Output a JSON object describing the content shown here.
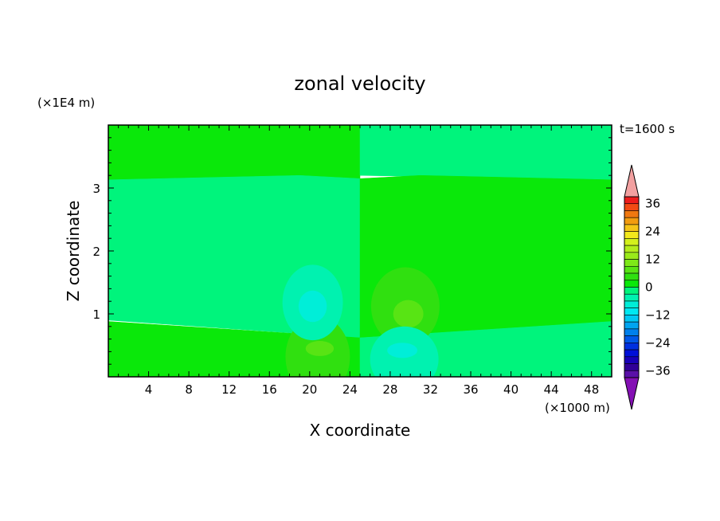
{
  "chart_data": {
    "type": "heatmap",
    "title": "zonal velocity",
    "xlabel": "X coordinate",
    "ylabel": "Z coordinate",
    "x_unit": "(×1000 m)",
    "y_unit": "(×1E4 m)",
    "time_label": "t=1600 s",
    "xlim": [
      0,
      50
    ],
    "ylim": [
      0,
      4
    ],
    "x_ticks": [
      4,
      8,
      12,
      16,
      20,
      24,
      28,
      32,
      36,
      40,
      44,
      48
    ],
    "y_ticks": [
      1,
      2,
      3
    ],
    "colorbar": {
      "labels": [
        36,
        24,
        12,
        0,
        -12,
        -24,
        -36
      ],
      "levels": [
        {
          "from": 39,
          "to": 42,
          "color": "#f2a0a0"
        },
        {
          "from": 36,
          "to": 39,
          "color": "#ee1c1c"
        },
        {
          "from": 33,
          "to": 36,
          "color": "#f24a14"
        },
        {
          "from": 30,
          "to": 33,
          "color": "#f07810"
        },
        {
          "from": 27,
          "to": 30,
          "color": "#f29c10"
        },
        {
          "from": 24,
          "to": 27,
          "color": "#f5c418"
        },
        {
          "from": 21,
          "to": 24,
          "color": "#f2e81c"
        },
        {
          "from": 18,
          "to": 21,
          "color": "#d4f01c"
        },
        {
          "from": 15,
          "to": 18,
          "color": "#b4ec1c"
        },
        {
          "from": 12,
          "to": 15,
          "color": "#9aea1a"
        },
        {
          "from": 9,
          "to": 12,
          "color": "#7ee818"
        },
        {
          "from": 6,
          "to": 9,
          "color": "#58e414"
        },
        {
          "from": 3,
          "to": 6,
          "color": "#30e010"
        },
        {
          "from": 0,
          "to": 3,
          "color": "#0ae80a"
        },
        {
          "from": -3,
          "to": 0,
          "color": "#00f47c"
        },
        {
          "from": -6,
          "to": -3,
          "color": "#00f2b0"
        },
        {
          "from": -9,
          "to": -6,
          "color": "#00eed8"
        },
        {
          "from": -12,
          "to": -9,
          "color": "#00e8f2"
        },
        {
          "from": -15,
          "to": -12,
          "color": "#00c8f4"
        },
        {
          "from": -18,
          "to": -15,
          "color": "#00a4f0"
        },
        {
          "from": -21,
          "to": -18,
          "color": "#0080ec"
        },
        {
          "from": -24,
          "to": -21,
          "color": "#0058e8"
        },
        {
          "from": -27,
          "to": -24,
          "color": "#0030e0"
        },
        {
          "from": -30,
          "to": -27,
          "color": "#0010d8"
        },
        {
          "from": -33,
          "to": -30,
          "color": "#1800b8"
        },
        {
          "from": -36,
          "to": -33,
          "color": "#300098"
        },
        {
          "from": -39,
          "to": -36,
          "color": "#5a10a8"
        },
        {
          "from": -42,
          "to": -39,
          "color": "#8410b4"
        }
      ]
    },
    "regions": [
      {
        "name": "upper-left-band",
        "value": 1.5,
        "poly": [
          [
            0,
            3.13
          ],
          [
            25,
            3.13
          ],
          [
            25,
            4
          ],
          [
            0,
            4
          ]
        ]
      },
      {
        "name": "upper-right-band",
        "value": -1.5,
        "poly": [
          [
            25,
            3.2
          ],
          [
            50,
            3.13
          ],
          [
            50,
            4
          ],
          [
            25,
            4
          ]
        ]
      },
      {
        "name": "middle-left",
        "value": -1.5,
        "poly": [
          [
            0,
            0.9
          ],
          [
            25,
            0.62
          ],
          [
            25,
            3.15
          ],
          [
            19,
            3.2
          ],
          [
            0,
            3.13
          ]
        ]
      },
      {
        "name": "middle-right",
        "value": 1.5,
        "poly": [
          [
            25,
            0.62
          ],
          [
            50,
            0.88
          ],
          [
            50,
            3.13
          ],
          [
            31,
            3.2
          ],
          [
            25,
            3.15
          ]
        ]
      },
      {
        "name": "bottom-left",
        "value": 1.5,
        "poly": [
          [
            0,
            0
          ],
          [
            25,
            0
          ],
          [
            25,
            0.62
          ],
          [
            0,
            0.88
          ]
        ]
      },
      {
        "name": "bottom-right",
        "value": -1.5,
        "poly": [
          [
            25,
            0
          ],
          [
            50,
            0
          ],
          [
            50,
            0.88
          ],
          [
            25,
            0.62
          ]
        ]
      }
    ],
    "features": [
      {
        "name": "positive-cell-low-left",
        "value": 4,
        "cx": 20.8,
        "cy": 0.32,
        "rx": 3.2,
        "ry": 0.64
      },
      {
        "name": "positive-core-low-left",
        "value": 8,
        "cx": 21,
        "cy": 0.45,
        "rx": 1.4,
        "ry": 0.12
      },
      {
        "name": "negative-cell-mid-left",
        "value": -4,
        "cx": 20.3,
        "cy": 1.18,
        "rx": 3.0,
        "ry": 0.6
      },
      {
        "name": "negative-core-mid-left",
        "value": -8,
        "cx": 20.3,
        "cy": 1.12,
        "rx": 1.4,
        "ry": 0.25
      },
      {
        "name": "positive-cell-mid-right",
        "value": 4,
        "cx": 29.5,
        "cy": 1.12,
        "rx": 3.4,
        "ry": 0.62
      },
      {
        "name": "positive-core-mid-right",
        "value": 8,
        "cx": 29.8,
        "cy": 1.0,
        "rx": 1.5,
        "ry": 0.22
      },
      {
        "name": "negative-cell-low-right",
        "value": -4,
        "cx": 29.4,
        "cy": 0.28,
        "rx": 3.4,
        "ry": 0.52
      },
      {
        "name": "negative-core-low-right",
        "value": -8,
        "cx": 29.2,
        "cy": 0.42,
        "rx": 1.5,
        "ry": 0.12
      }
    ]
  }
}
